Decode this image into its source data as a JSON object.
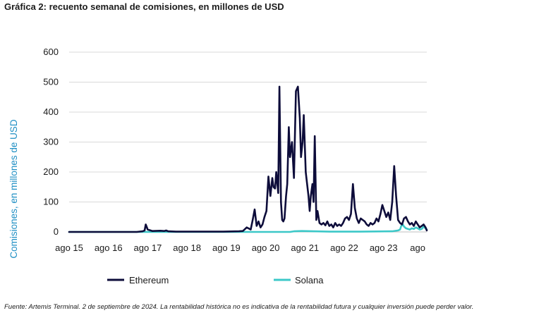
{
  "chart_data": {
    "type": "line",
    "title": "Gráfica 2: recuento semanal de comisiones, en millones de USD",
    "ylabel": "Comisiones, en millones de USD",
    "xlabel": "",
    "ylim": [
      0,
      600
    ],
    "yticks": [
      "0",
      "100",
      "200",
      "300",
      "400",
      "500",
      "600"
    ],
    "yticks_values": [
      0,
      100,
      200,
      300,
      400,
      500,
      600
    ],
    "xlim": [
      2015.58,
      2024.68
    ],
    "xticks": [
      {
        "label": "ago 15",
        "value": 2015.58
      },
      {
        "label": "ago 16",
        "value": 2016.58
      },
      {
        "label": "ago 17",
        "value": 2017.58
      },
      {
        "label": "ago 18",
        "value": 2018.58
      },
      {
        "label": "ago 19",
        "value": 2019.58
      },
      {
        "label": "ago 20",
        "value": 2020.58
      },
      {
        "label": "ago 21",
        "value": 2021.58
      },
      {
        "label": "ago 22",
        "value": 2022.58
      },
      {
        "label": "ago 23",
        "value": 2023.58
      },
      {
        "label": "ago",
        "value": 2024.58
      }
    ],
    "grid": true,
    "legend": "bottom",
    "series": [
      {
        "name": "Ethereum",
        "color": "#0d0c3a",
        "x": [
          2015.58,
          2016.5,
          2017.3,
          2017.45,
          2017.5,
          2017.53,
          2017.58,
          2017.7,
          2017.9,
          2018.0,
          2018.05,
          2018.1,
          2018.3,
          2018.6,
          2019.0,
          2019.5,
          2019.9,
          2020.0,
          2020.1,
          2020.2,
          2020.25,
          2020.3,
          2020.35,
          2020.4,
          2020.45,
          2020.5,
          2020.55,
          2020.6,
          2020.65,
          2020.7,
          2020.75,
          2020.78,
          2020.82,
          2020.85,
          2020.9,
          2020.93,
          2020.97,
          2021.0,
          2021.03,
          2021.06,
          2021.1,
          2021.13,
          2021.17,
          2021.2,
          2021.25,
          2021.3,
          2021.35,
          2021.4,
          2021.45,
          2021.48,
          2021.52,
          2021.55,
          2021.6,
          2021.63,
          2021.67,
          2021.7,
          2021.73,
          2021.77,
          2021.8,
          2021.83,
          2021.87,
          2021.9,
          2021.95,
          2022.0,
          2022.05,
          2022.1,
          2022.15,
          2022.2,
          2022.25,
          2022.3,
          2022.35,
          2022.4,
          2022.45,
          2022.5,
          2022.55,
          2022.6,
          2022.65,
          2022.7,
          2022.75,
          2022.8,
          2022.85,
          2022.9,
          2022.95,
          2023.0,
          2023.05,
          2023.1,
          2023.15,
          2023.2,
          2023.25,
          2023.3,
          2023.35,
          2023.4,
          2023.45,
          2023.5,
          2023.55,
          2023.6,
          2023.65,
          2023.7,
          2023.75,
          2023.8,
          2023.85,
          2023.9,
          2023.95,
          2024.0,
          2024.05,
          2024.1,
          2024.15,
          2024.2,
          2024.25,
          2024.3,
          2024.35,
          2024.4,
          2024.45,
          2024.5,
          2024.55,
          2024.6,
          2024.65,
          2024.68
        ],
        "values": [
          0,
          0,
          0,
          2,
          5,
          25,
          8,
          3,
          4,
          3,
          5,
          2,
          1,
          1,
          1,
          1,
          2,
          3,
          15,
          8,
          40,
          75,
          20,
          35,
          15,
          25,
          50,
          70,
          185,
          120,
          180,
          150,
          145,
          200,
          130,
          485,
          100,
          40,
          35,
          45,
          120,
          160,
          350,
          250,
          300,
          180,
          470,
          485,
          380,
          250,
          300,
          390,
          200,
          165,
          120,
          70,
          120,
          160,
          100,
          320,
          40,
          70,
          30,
          25,
          30,
          22,
          35,
          20,
          25,
          15,
          30,
          20,
          25,
          20,
          30,
          45,
          50,
          40,
          60,
          160,
          80,
          45,
          30,
          45,
          40,
          35,
          25,
          20,
          30,
          25,
          30,
          45,
          35,
          60,
          90,
          70,
          50,
          65,
          40,
          100,
          220,
          120,
          40,
          30,
          25,
          45,
          50,
          35,
          25,
          30,
          20,
          35,
          25,
          15,
          20,
          25,
          15,
          5
        ]
      },
      {
        "name": "Solana",
        "color": "#3cc8c8",
        "x": [
          2015.58,
          2021.2,
          2021.3,
          2021.5,
          2021.8,
          2022.2,
          2023.0,
          2023.8,
          2023.95,
          2024.0,
          2024.03,
          2024.07,
          2024.1,
          2024.15,
          2024.2,
          2024.25,
          2024.3,
          2024.35,
          2024.4,
          2024.45,
          2024.5,
          2024.55,
          2024.6,
          2024.65,
          2024.68
        ],
        "values": [
          0,
          0,
          2,
          3,
          2,
          1,
          1,
          2,
          5,
          8,
          20,
          25,
          18,
          12,
          10,
          8,
          12,
          10,
          15,
          12,
          8,
          10,
          18,
          12,
          8
        ]
      }
    ]
  },
  "footnote": "Fuente: Artemis Terminal. 2 de septiembre de 2024. La rentabilidad histórica no es indicativa de la rentabilidad futura y cualquier inversión puede perder valor."
}
